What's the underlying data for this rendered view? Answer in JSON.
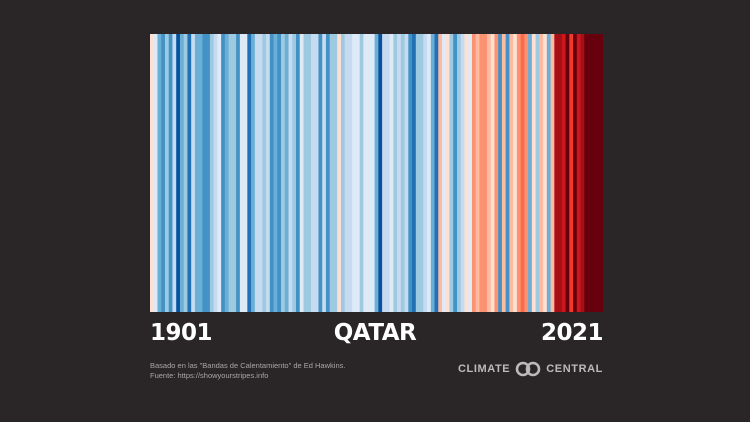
{
  "labels": {
    "start_year": "1901",
    "country": "QATAR",
    "end_year": "2021"
  },
  "credit": {
    "line1": "Basado en las \"Bandas de Calentamiento\" de Ed Hawkins.",
    "line2": "Fuente: https://showyourstripes.info"
  },
  "logo": {
    "word1": "CLIMATE",
    "word2": "CENTRAL",
    "icon": "interlocking-rings-icon"
  },
  "colors": {
    "background": "#2a2627",
    "text": "#ffffff",
    "credit": "#a9a6a7",
    "logo": "#bdbabb"
  },
  "chart_data": {
    "type": "heatmap",
    "x_start": 1901,
    "x_end": 2021,
    "color_scale": [
      "#08306b",
      "#08519c",
      "#2171b5",
      "#4292c6",
      "#6baed6",
      "#9ecae1",
      "#c6dbef",
      "#deebf7",
      "#fee0d2",
      "#fcbba1",
      "#fc9272",
      "#fb6a4a",
      "#ef3b2c",
      "#cb181d",
      "#a50f15",
      "#67000d"
    ],
    "stripe_levels": [
      8,
      7,
      4,
      3,
      5,
      3,
      6,
      1,
      4,
      5,
      2,
      6,
      4,
      4,
      3,
      3,
      5,
      6,
      7,
      3,
      4,
      5,
      5,
      3,
      7,
      7,
      2,
      4,
      6,
      6,
      5,
      6,
      3,
      4,
      3,
      5,
      4,
      6,
      5,
      3,
      7,
      5,
      5,
      6,
      6,
      3,
      6,
      3,
      5,
      5,
      8,
      5,
      6,
      6,
      7,
      7,
      5,
      7,
      7,
      7,
      4,
      1,
      6,
      6,
      7,
      5,
      6,
      5,
      6,
      3,
      2,
      5,
      5,
      6,
      7,
      4,
      2,
      9,
      7,
      8,
      5,
      3,
      5,
      6,
      8,
      7,
      10,
      9,
      10,
      10,
      9,
      8,
      10,
      3,
      9,
      3,
      9,
      8,
      10,
      11,
      10,
      4,
      8,
      5,
      9,
      8,
      4,
      9,
      14,
      14,
      13,
      15,
      12,
      15,
      13,
      14,
      15,
      15,
      15,
      15,
      15
    ]
  }
}
